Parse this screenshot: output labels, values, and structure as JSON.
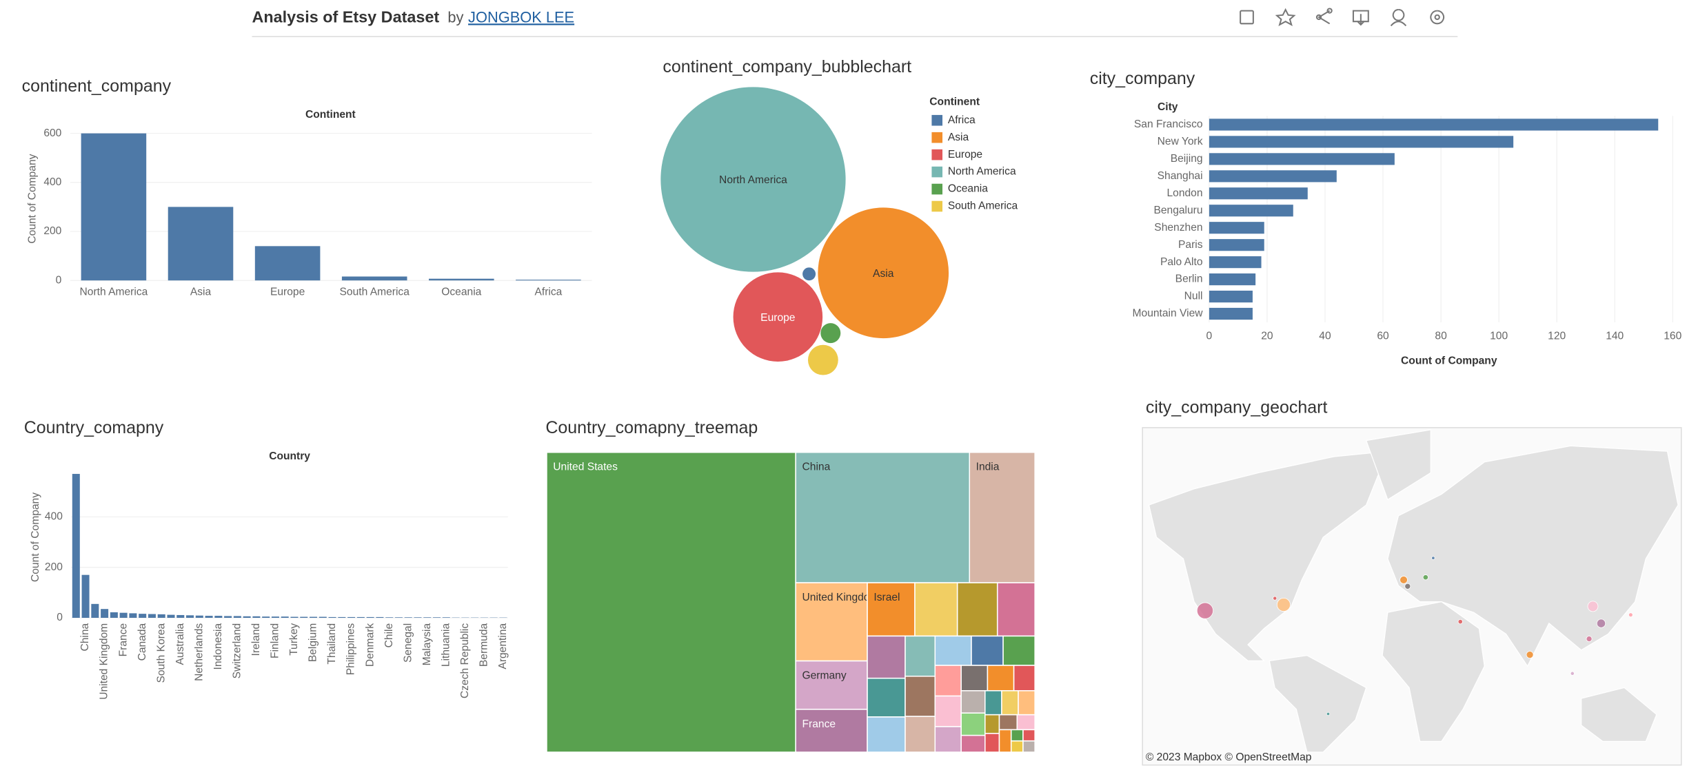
{
  "header": {
    "title": "Analysis of Etsy Dataset",
    "by": "by",
    "author": "JONGBOK LEE"
  },
  "chart_data": [
    {
      "type": "bar",
      "title": "continent_company",
      "header": "Continent",
      "y_label": "Count of Company",
      "categories": [
        "North America",
        "Asia",
        "Europe",
        "South America",
        "Oceania",
        "Africa"
      ],
      "values": [
        600,
        300,
        140,
        16,
        7,
        3
      ],
      "color": "#4e79a7",
      "ylim": [
        0,
        640
      ],
      "yticks": [
        0,
        200,
        400,
        600
      ],
      "grid": true
    },
    {
      "type": "bubble",
      "title": "continent_company_bubblechart",
      "legend_title": "Continent",
      "categories": [
        "Africa",
        "Asia",
        "Europe",
        "North America",
        "Oceania",
        "South America"
      ],
      "values": [
        3,
        300,
        140,
        600,
        7,
        16
      ],
      "colors": [
        "#4e79a7",
        "#f28e2b",
        "#e15759",
        "#76b7b2",
        "#59a14f",
        "#edc948"
      ]
    },
    {
      "type": "hbar",
      "title": "city_company",
      "y_label": "City",
      "x_label": "Count of Company",
      "categories": [
        "San Francisco",
        "New York",
        "Beijing",
        "Shanghai",
        "London",
        "Bengaluru",
        "Shenzhen",
        "Paris",
        "Palo Alto",
        "Berlin",
        "Null",
        "Mountain View"
      ],
      "values": [
        155,
        105,
        64,
        44,
        34,
        29,
        19,
        19,
        18,
        16,
        15,
        15
      ],
      "color": "#4e79a7",
      "xlim": [
        0,
        160
      ],
      "xticks": [
        0,
        20,
        40,
        60,
        80,
        100,
        120,
        140,
        160
      ],
      "grid": true
    },
    {
      "type": "bar",
      "title": "Country_comapny",
      "header": "Country",
      "y_label": "Count of Company",
      "categories": [
        null,
        "China",
        null,
        "United Kingdom",
        null,
        "France",
        null,
        "Canada",
        null,
        "South Korea",
        null,
        "Australia",
        null,
        "Netherlands",
        null,
        "Indonesia",
        null,
        "Switzerland",
        null,
        "Ireland",
        null,
        "Finland",
        null,
        "Turkey",
        null,
        "Belgium",
        null,
        "Thailand",
        null,
        "Philippines",
        null,
        "Denmark",
        null,
        "Chile",
        null,
        "Senegal",
        null,
        "Malaysia",
        null,
        "Lithuania",
        null,
        "Czech Republic",
        null,
        "Bermuda",
        null,
        "Argentina"
      ],
      "values": [
        570,
        170,
        55,
        35,
        22,
        20,
        18,
        16,
        15,
        14,
        12,
        11,
        10,
        9,
        8,
        8,
        7,
        7,
        6,
        6,
        5,
        5,
        5,
        4,
        4,
        4,
        4,
        3,
        3,
        3,
        3,
        3,
        3,
        2,
        2,
        2,
        2,
        2,
        2,
        2,
        1,
        1,
        1,
        1,
        1,
        1
      ],
      "color": "#4e79a7",
      "ylim": [
        0,
        600
      ],
      "yticks": [
        0,
        200,
        400
      ],
      "grid": true
    },
    {
      "type": "treemap",
      "title": "Country_comapny_treemap",
      "labels": [
        "United States",
        "China",
        "India",
        "United Kingdom",
        "Germany",
        "France",
        "Israel",
        null,
        null,
        null,
        null,
        null,
        null,
        null,
        null,
        null,
        null,
        null,
        null,
        null,
        null,
        null,
        null,
        null,
        null,
        null,
        null,
        null,
        null,
        null,
        null,
        null,
        null,
        null,
        null,
        null,
        null,
        null,
        null,
        null
      ],
      "values": [
        560,
        170,
        64,
        42,
        26,
        23,
        19,
        17,
        16,
        15,
        12,
        11,
        10,
        9,
        9,
        8,
        8,
        7,
        7,
        6,
        6,
        5,
        5,
        5,
        4,
        4,
        4,
        3,
        3,
        3,
        3,
        2,
        2,
        2,
        2,
        2,
        1,
        1,
        1,
        1
      ],
      "colors": [
        "#59a14f",
        "#86bcb6",
        "#d7b5a6",
        "#ffbe7d",
        "#d4a6c8",
        "#b07aa1",
        "#f28e2b",
        "#f1ce63",
        "#b6992d",
        "#d37295",
        "#b07aa1",
        "#499894",
        "#a0cbe8",
        "#86bcb6",
        "#9d7660",
        "#d7b5a6",
        "#a0cbe8",
        "#4e79a7",
        "#59a14f",
        "#ff9d9a",
        "#fabfd2",
        "#d4a6c8",
        "#79706e",
        "#f28e2b",
        "#e15759",
        "#bab0ac",
        "#8cd17d",
        "#d37295",
        "#499894",
        "#f1ce63",
        "#ffbe7d",
        "#b6992d",
        "#e15759",
        "#9d7660",
        "#fabfd2",
        "#f28e2b",
        "#59a14f",
        "#edc948",
        "#e15759",
        "#bab0ac"
      ]
    },
    {
      "type": "map",
      "title": "city_company_geochart",
      "attribution": "© 2023 Mapbox © OpenStreetMap",
      "x": [
        -122.4,
        -74.0,
        116.4,
        121.5,
        -0.1,
        77.6,
        114.1,
        2.35,
        13.4,
        -79.4,
        -46.6,
        139.7,
        18.1,
        34.8,
        103.8
      ],
      "y": [
        37.8,
        40.7,
        39.9,
        31.2,
        51.5,
        13.0,
        22.5,
        48.9,
        52.5,
        43.7,
        -23.5,
        35.7,
        59.3,
        32.1,
        1.3
      ],
      "values": [
        155,
        105,
        64,
        44,
        34,
        29,
        19,
        19,
        16,
        8,
        6,
        10,
        6,
        12,
        8
      ],
      "colors": [
        "#d37295",
        "#ffbe7d",
        "#fabfd2",
        "#b07aa1",
        "#f28e2b",
        "#f28e2b",
        "#d37295",
        "#79706e",
        "#59a14f",
        "#e15759",
        "#499894",
        "#ff9da7",
        "#4e79a7",
        "#e15759",
        "#d4a6c8"
      ]
    }
  ]
}
